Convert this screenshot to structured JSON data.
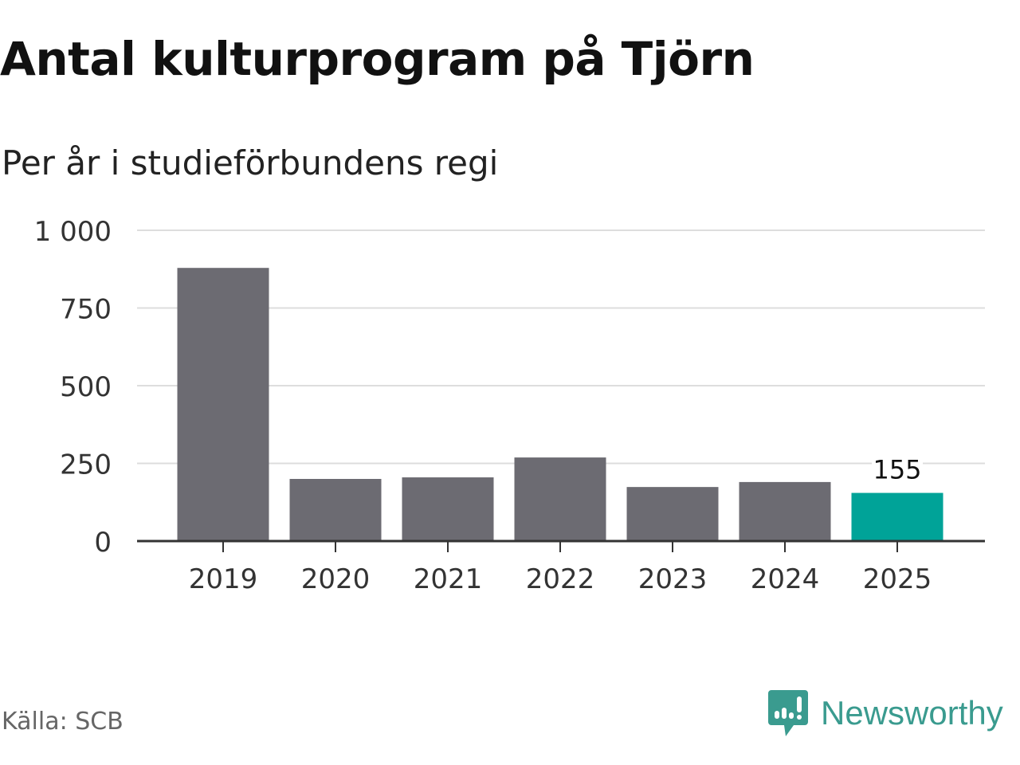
{
  "title": "Antal kulturprogram på Tjörn",
  "subtitle": "Per år i studieförbundens regi",
  "source": "Källa: SCB",
  "brand": "Newsworthy",
  "colors": {
    "bar": "#6c6b72",
    "highlight": "#00a398",
    "grid": "#dddddd",
    "brand": "#3a9b8f"
  },
  "chart_data": {
    "type": "bar",
    "title": "Antal kulturprogram på Tjörn",
    "subtitle": "Per år i studieförbundens regi",
    "xlabel": "",
    "ylabel": "",
    "categories": [
      "2019",
      "2020",
      "2021",
      "2022",
      "2023",
      "2024",
      "2025"
    ],
    "values": [
      879,
      200,
      205,
      269,
      174,
      190,
      155
    ],
    "highlight_index": 6,
    "data_labels": [
      {
        "index": 6,
        "text": "155"
      }
    ],
    "ylim": [
      0,
      1000
    ],
    "yticks": [
      0,
      250,
      500,
      750,
      1000
    ],
    "ytick_labels": [
      "0",
      "250",
      "500",
      "750",
      "1 000"
    ],
    "grid": true,
    "legend": "none"
  }
}
